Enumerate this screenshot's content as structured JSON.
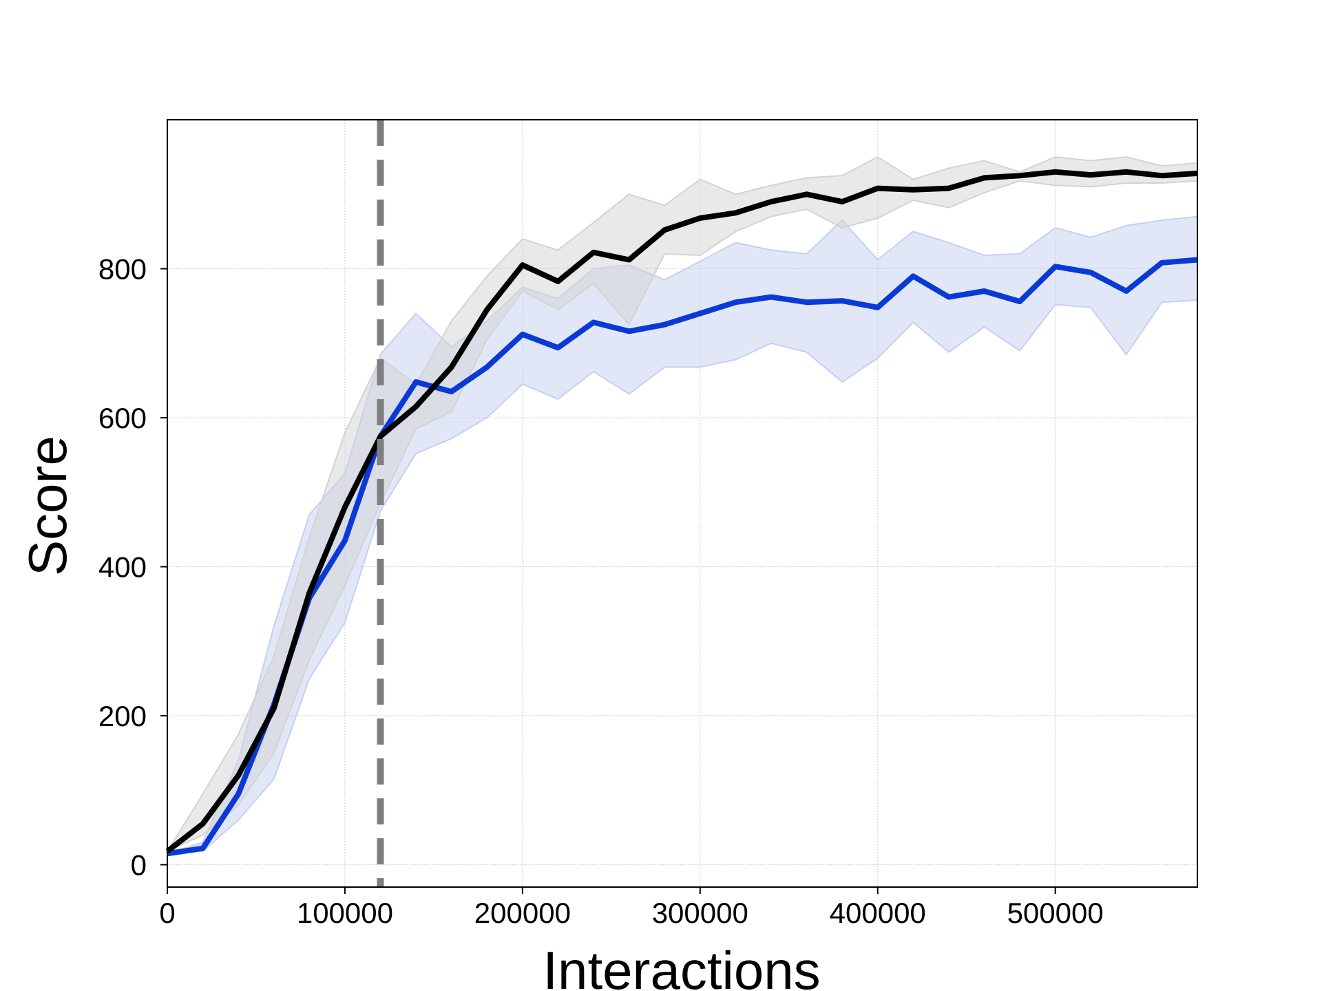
{
  "chart_data": {
    "type": "line",
    "title": "",
    "xlabel": "Interactions",
    "ylabel": "Score",
    "xlim": [
      0,
      580000
    ],
    "ylim": [
      -30,
      1000
    ],
    "x_ticks": [
      0,
      100000,
      200000,
      300000,
      400000,
      500000
    ],
    "x_tick_labels": [
      "0",
      "100000",
      "200000",
      "300000",
      "400000",
      "500000"
    ],
    "y_ticks": [
      0,
      200,
      400,
      600,
      800
    ],
    "y_tick_labels": [
      "0",
      "200",
      "400",
      "600",
      "800"
    ],
    "grid": true,
    "legend": "none",
    "vline": {
      "x": 120000,
      "color": "#7f7f7f",
      "style": "dashed"
    },
    "x": [
      0,
      20000,
      40000,
      60000,
      80000,
      100000,
      120000,
      140000,
      160000,
      180000,
      200000,
      220000,
      240000,
      260000,
      280000,
      300000,
      320000,
      340000,
      360000,
      380000,
      400000,
      420000,
      440000,
      460000,
      480000,
      500000,
      520000,
      540000,
      560000,
      580000
    ],
    "series": [
      {
        "color": "#0a3ad6",
        "band_color": "#c5cff2",
        "values": [
          15,
          22,
          95,
          215,
          358,
          435,
          575,
          648,
          635,
          668,
          712,
          694,
          728,
          716,
          725,
          740,
          755,
          762,
          755,
          757,
          748,
          790,
          762,
          770,
          756,
          803,
          795,
          770,
          808,
          812
        ],
        "lower": [
          15,
          18,
          60,
          115,
          250,
          325,
          475,
          552,
          572,
          600,
          645,
          625,
          662,
          632,
          668,
          668,
          678,
          700,
          688,
          648,
          680,
          728,
          688,
          722,
          690,
          752,
          748,
          685,
          755,
          758
        ],
        "upper": [
          15,
          30,
          140,
          320,
          470,
          525,
          685,
          740,
          695,
          730,
          775,
          760,
          800,
          805,
          785,
          810,
          835,
          825,
          820,
          865,
          812,
          850,
          835,
          818,
          820,
          855,
          842,
          858,
          865,
          870
        ]
      },
      {
        "color": "#000000",
        "band_color": "#d3d3d3",
        "values": [
          18,
          55,
          120,
          210,
          365,
          480,
          575,
          615,
          668,
          745,
          805,
          783,
          822,
          812,
          852,
          868,
          875,
          890,
          900,
          890,
          908,
          906,
          908,
          922,
          925,
          930,
          926,
          930,
          925,
          928
        ],
        "lower": [
          18,
          40,
          80,
          150,
          275,
          375,
          485,
          585,
          608,
          705,
          770,
          745,
          780,
          725,
          820,
          818,
          850,
          870,
          880,
          855,
          868,
          892,
          882,
          902,
          918,
          912,
          910,
          915,
          915,
          918
        ],
        "upper": [
          18,
          95,
          175,
          280,
          440,
          580,
          680,
          645,
          730,
          790,
          840,
          825,
          862,
          900,
          885,
          920,
          900,
          912,
          922,
          925,
          950,
          920,
          935,
          945,
          930,
          950,
          945,
          950,
          938,
          942
        ]
      }
    ]
  }
}
